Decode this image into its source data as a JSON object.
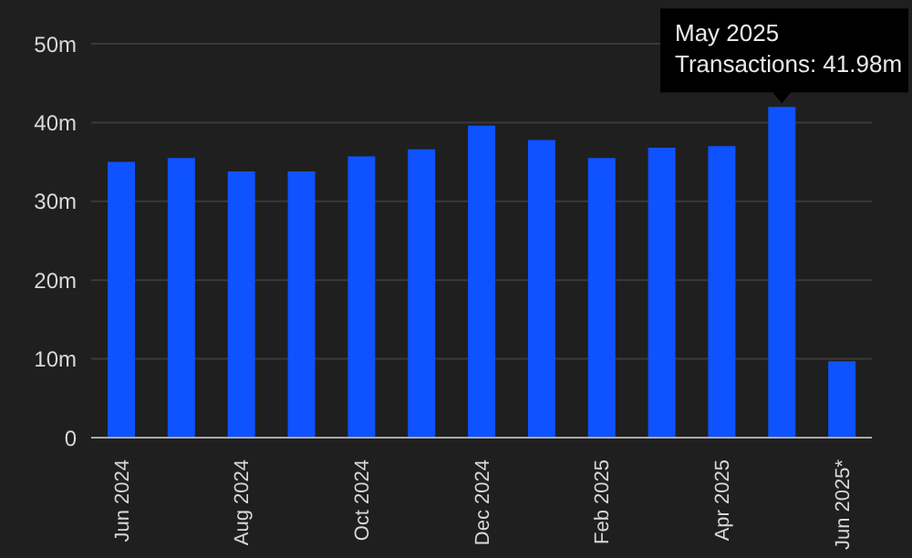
{
  "chart_data": {
    "type": "bar",
    "categories": [
      "Jun 2024",
      null,
      "Aug 2024",
      null,
      "Oct 2024",
      null,
      "Dec 2024",
      null,
      "Feb 2025",
      null,
      "Apr 2025",
      null,
      "Jun 2025*"
    ],
    "series": [
      {
        "color": "#0f52ff",
        "values": [
          35.0,
          35.5,
          33.8,
          33.8,
          35.7,
          36.6,
          39.6,
          37.8,
          35.5,
          36.8,
          37.0,
          41.98,
          9.7
        ]
      }
    ],
    "ylim": [
      0,
      50
    ],
    "yticks": [
      {
        "value": 0,
        "label": "0"
      },
      {
        "value": 10,
        "label": "10m"
      },
      {
        "value": 20,
        "label": "20m"
      },
      {
        "value": 30,
        "label": "30m"
      },
      {
        "value": 40,
        "label": "40m"
      },
      {
        "value": 50,
        "label": "50m"
      }
    ],
    "grid": "y",
    "annotations": [
      {
        "text": "May 2025\nTransactions: 41.98m",
        "y": 41.98
      }
    ]
  }
}
